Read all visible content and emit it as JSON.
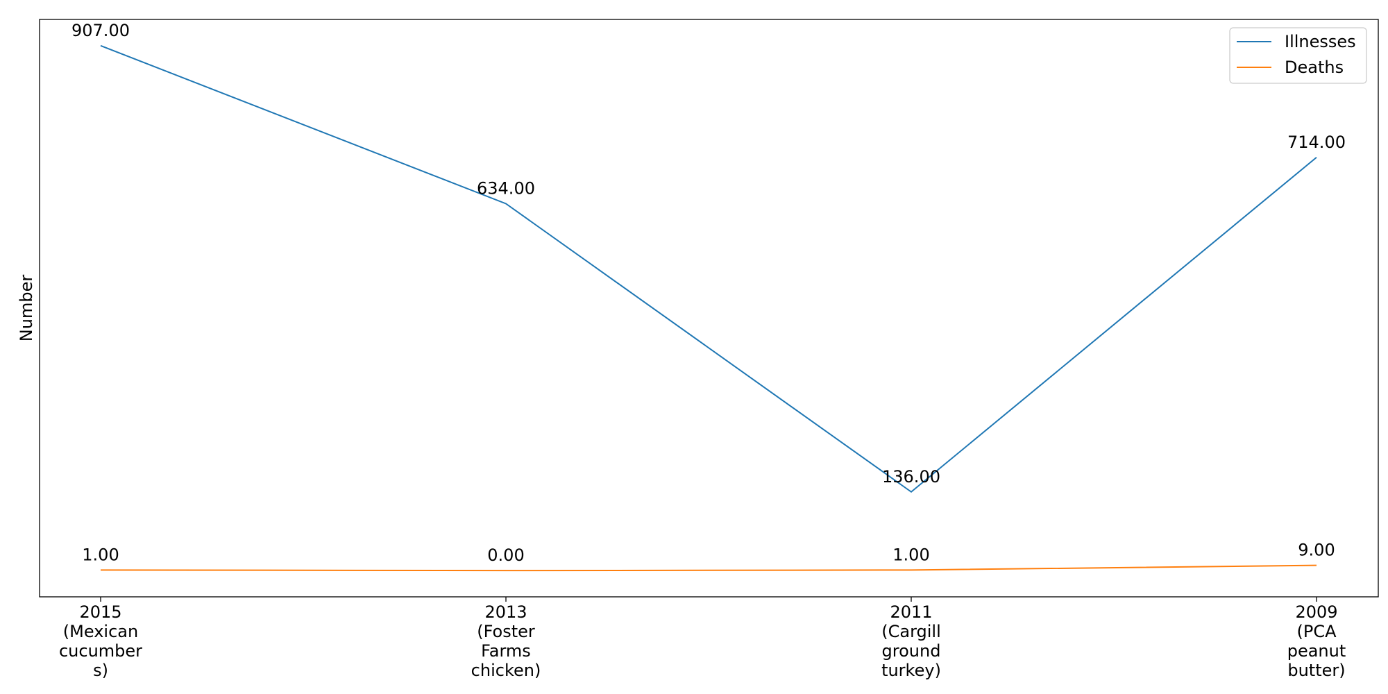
{
  "chart_data": {
    "type": "line",
    "categories": [
      [
        "2015",
        "(Mexican",
        "cucumber",
        "s)"
      ],
      [
        "2013",
        "(Foster",
        "Farms",
        "chicken)"
      ],
      [
        "2011",
        "(Cargill",
        "ground",
        "turkey)"
      ],
      [
        "2009",
        "(PCA",
        "peanut",
        "butter)"
      ]
    ],
    "series": [
      {
        "name": "Illnesses",
        "values": [
          907,
          634,
          136,
          714
        ],
        "labels": [
          "907.00",
          "634.00",
          "136.00",
          "714.00"
        ],
        "color": "#1f77b4"
      },
      {
        "name": "Deaths",
        "values": [
          1,
          0,
          1,
          9
        ],
        "labels": [
          "1.00",
          "0.00",
          "1.00",
          "9.00"
        ],
        "color": "#ff7f0e"
      }
    ],
    "title": "",
    "xlabel": "",
    "ylabel": "Number",
    "ylim": [
      -45.35,
      952.35
    ],
    "grid": false,
    "legend": "top-right"
  }
}
